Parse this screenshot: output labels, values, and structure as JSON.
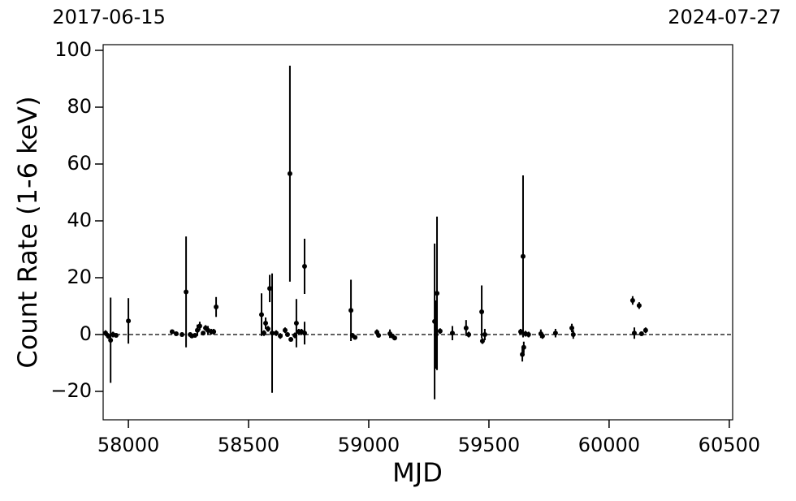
{
  "chart_data": {
    "type": "errorbar",
    "xlabel": "MJD",
    "ylabel": "Count Rate (1-6 keV)",
    "xlim": [
      57895,
      60514
    ],
    "ylim": [
      -30,
      102
    ],
    "xticks": [
      58000,
      58500,
      59000,
      59500,
      60000,
      60500
    ],
    "yticks": [
      {
        "value": -20,
        "label": "−20"
      },
      0,
      20,
      40,
      60,
      80,
      100
    ],
    "x2ticks": [
      {
        "value": 57919,
        "label": "2017-06-15"
      },
      {
        "value": 60518,
        "label": "2024-07-27"
      }
    ],
    "reference_line": 0,
    "color": "#000000",
    "series": [
      {
        "x": [
          57905,
          57916,
          57926,
          57936,
          57949,
          58000,
          58182,
          58199,
          58223,
          58240,
          58257,
          58264,
          58277,
          58287,
          58297,
          58311,
          58321,
          58331,
          58345,
          58355,
          58365,
          58554,
          58564,
          58571,
          58581,
          58588,
          58598,
          58615,
          58632,
          58652,
          58662,
          58672,
          58676,
          58693,
          58699,
          58709,
          58720,
          58733,
          58733,
          58926,
          58932,
          58943,
          59034,
          59041,
          59088,
          59098,
          59108,
          59274,
          59280,
          59284,
          59297,
          59348,
          59405,
          59416,
          59470,
          59473,
          59483,
          59632,
          59639,
          59642,
          59645,
          59652,
          59665,
          59716,
          59723,
          59777,
          59845,
          59851,
          60098,
          60105,
          60125,
          60135,
          60152
        ],
        "values": [
          0.5,
          -0.5,
          -2,
          0,
          -0.3,
          4.8,
          1,
          0.3,
          0,
          15,
          0,
          -0.5,
          -0.3,
          1.5,
          3,
          0.5,
          2.3,
          1.5,
          1,
          1,
          9.7,
          7,
          0.5,
          4,
          2,
          16.2,
          0.5,
          0.5,
          -0.5,
          1.5,
          0,
          56.6,
          -1.7,
          -0.3,
          4,
          1,
          1,
          24,
          0.5,
          8.5,
          -0.3,
          -1,
          0.8,
          -0.3,
          0.3,
          -0.5,
          -1.2,
          4.6,
          0,
          14.5,
          1.2,
          0.5,
          2.3,
          0,
          8,
          -2.3,
          0,
          1,
          -7,
          27.5,
          -4.5,
          0.3,
          0,
          0.3,
          -0.5,
          0.5,
          2.3,
          0,
          12,
          0.5,
          10.2,
          0.3,
          1.5
        ],
        "errors": [
          1,
          1,
          15,
          1,
          0.5,
          8,
          0.5,
          0.5,
          0.5,
          19.5,
          0.5,
          0.5,
          0.5,
          2,
          1.5,
          0.5,
          1,
          1.5,
          1,
          1,
          3.5,
          7.5,
          1,
          2,
          1,
          4.8,
          21,
          1,
          1,
          1,
          0.5,
          38,
          0.5,
          1,
          8.5,
          1,
          1,
          9.7,
          4,
          10.8,
          0.5,
          0.5,
          1,
          0.5,
          1.5,
          0.5,
          0.5,
          27.4,
          12,
          27,
          1,
          2.5,
          2.8,
          1,
          9.3,
          1,
          2,
          1,
          2.5,
          28.5,
          2,
          1,
          1,
          1.5,
          1,
          1.5,
          1.5,
          1.5,
          1.5,
          2,
          1.2,
          0.5,
          1
        ]
      }
    ]
  }
}
